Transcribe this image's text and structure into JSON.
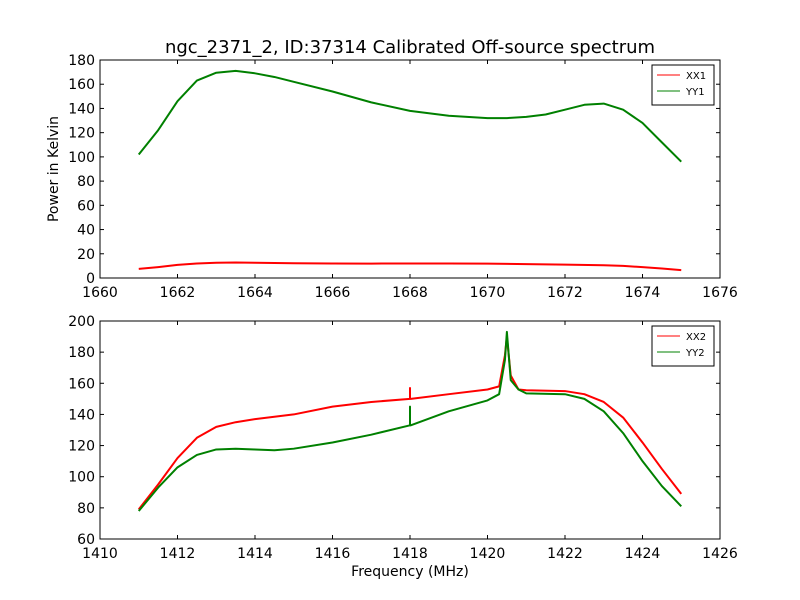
{
  "chart_data": [
    {
      "type": "line",
      "title": "ngc_2371_2, ID:37314 Calibrated Off-source spectrum",
      "xlabel": "",
      "ylabel": "Power in Kelvin",
      "xlim": [
        1660,
        1676
      ],
      "ylim": [
        0,
        180
      ],
      "xticks": [
        1660,
        1662,
        1664,
        1666,
        1668,
        1670,
        1672,
        1674,
        1676
      ],
      "yticks": [
        0,
        20,
        40,
        60,
        80,
        100,
        120,
        140,
        160,
        180
      ],
      "xtick_labels": [
        "1660",
        "1662",
        "1664",
        "1666",
        "1668",
        "1670",
        "1672",
        "1674",
        "1676"
      ],
      "ytick_labels": [
        "0",
        "20",
        "40",
        "60",
        "80",
        "100",
        "120",
        "140",
        "160",
        "180"
      ],
      "legend_position": "top-right",
      "grid": false,
      "series": [
        {
          "name": "XX1",
          "color": "#ff0000",
          "x": [
            1661.0,
            1661.5,
            1662.0,
            1662.5,
            1663.0,
            1663.5,
            1664.0,
            1665.0,
            1666.0,
            1667.0,
            1668.0,
            1669.0,
            1670.0,
            1671.0,
            1672.0,
            1673.0,
            1673.5,
            1674.0,
            1674.5,
            1675.0
          ],
          "y": [
            7.5,
            9.0,
            10.8,
            12.0,
            12.6,
            12.8,
            12.6,
            12.2,
            12.0,
            11.9,
            12.0,
            12.0,
            11.9,
            11.5,
            11.0,
            10.5,
            10.0,
            9.0,
            7.8,
            6.5
          ]
        },
        {
          "name": "YY1",
          "color": "#008000",
          "x": [
            1661.0,
            1661.5,
            1662.0,
            1662.5,
            1663.0,
            1663.5,
            1664.0,
            1664.5,
            1665.0,
            1666.0,
            1667.0,
            1668.0,
            1669.0,
            1670.0,
            1670.5,
            1671.0,
            1671.5,
            1672.0,
            1672.5,
            1673.0,
            1673.5,
            1674.0,
            1674.5,
            1675.0
          ],
          "y": [
            102,
            122,
            146,
            163,
            169.5,
            171,
            169,
            166,
            162,
            154,
            145,
            138,
            134,
            132,
            132,
            133,
            135,
            139,
            143,
            144,
            139,
            128,
            112,
            96
          ]
        }
      ]
    },
    {
      "type": "line",
      "title": "",
      "xlabel": "Frequency (MHz)",
      "ylabel": "",
      "xlim": [
        1410,
        1426
      ],
      "ylim": [
        60,
        200
      ],
      "xticks": [
        1410,
        1412,
        1414,
        1416,
        1418,
        1420,
        1422,
        1424,
        1426
      ],
      "yticks": [
        60,
        80,
        100,
        120,
        140,
        160,
        180,
        200
      ],
      "xtick_labels": [
        "1410",
        "1412",
        "1414",
        "1416",
        "1418",
        "1420",
        "1422",
        "1424",
        "1426"
      ],
      "ytick_labels": [
        "60",
        "80",
        "100",
        "120",
        "140",
        "160",
        "180",
        "200"
      ],
      "legend_position": "top-right",
      "grid": false,
      "series": [
        {
          "name": "XX2",
          "color": "#ff0000",
          "x": [
            1411.0,
            1411.5,
            1412.0,
            1412.5,
            1413.0,
            1413.5,
            1414.0,
            1415.0,
            1416.0,
            1417.0,
            1418.0,
            1418.0,
            1418.0,
            1418.02,
            1419.0,
            1420.0,
            1420.3,
            1420.45,
            1420.5,
            1420.6,
            1420.8,
            1421.0,
            1422.0,
            1422.5,
            1423.0,
            1423.5,
            1424.0,
            1424.5,
            1425.0
          ],
          "y": [
            79,
            95,
            112,
            125,
            132,
            135,
            137,
            140,
            145,
            148,
            150,
            157,
            150,
            150,
            153,
            156,
            158,
            178,
            190,
            165,
            156,
            155.5,
            155,
            153,
            148,
            138,
            122,
            105,
            89
          ]
        },
        {
          "name": "YY2",
          "color": "#008000",
          "x": [
            1411.0,
            1411.5,
            1412.0,
            1412.5,
            1413.0,
            1413.5,
            1414.0,
            1414.5,
            1415.0,
            1416.0,
            1417.0,
            1418.0,
            1418.0,
            1418.0,
            1418.02,
            1419.0,
            1420.0,
            1420.3,
            1420.45,
            1420.5,
            1420.6,
            1420.8,
            1421.0,
            1422.0,
            1422.5,
            1423.0,
            1423.5,
            1424.0,
            1424.5,
            1425.0
          ],
          "y": [
            78,
            93,
            106,
            114,
            117.5,
            118,
            117.5,
            117,
            118,
            122,
            127,
            133,
            145,
            133,
            133,
            142,
            149,
            153,
            175,
            193,
            162,
            156,
            153.5,
            153,
            150,
            142,
            128,
            110,
            94,
            81
          ]
        }
      ]
    }
  ]
}
